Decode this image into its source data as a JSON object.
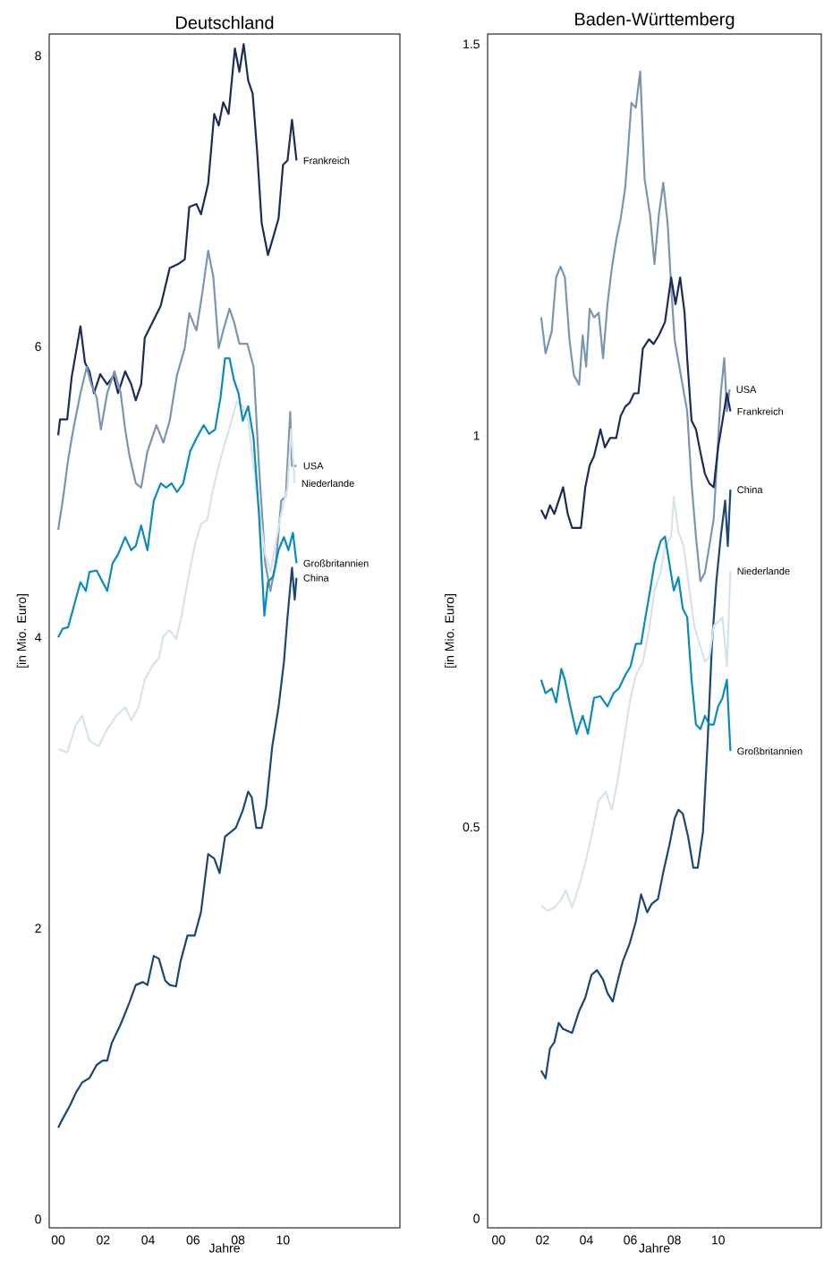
{
  "chart_data": [
    {
      "type": "line",
      "title": "Deutschland",
      "xlabel": "Jahre",
      "ylabel": "[in Mio. Euro]",
      "xlim": [
        -0.4,
        15.2
      ],
      "ylim": [
        -0.06,
        8.15
      ],
      "xticks": [
        {
          "value": 0,
          "label": "00"
        },
        {
          "value": 2,
          "label": "02"
        },
        {
          "value": 4,
          "label": "04"
        },
        {
          "value": 6,
          "label": "06"
        },
        {
          "value": 8,
          "label": "08"
        },
        {
          "value": 10,
          "label": "10"
        }
      ],
      "yticks": [
        0,
        2,
        4,
        6,
        8
      ],
      "grid": false,
      "legend": false,
      "line_style": "solid",
      "series": [
        {
          "name": "Frankreich",
          "color": "#1c2b57",
          "x": [
            0,
            0.08,
            0.4,
            0.6,
            0.99,
            1.19,
            1.39,
            1.59,
            1.87,
            2.18,
            2.46,
            2.66,
            2.98,
            3.25,
            3.45,
            3.69,
            3.85,
            4.56,
            4.96,
            5.36,
            5.63,
            5.83,
            6.15,
            6.35,
            6.67,
            6.94,
            7.14,
            7.34,
            7.58,
            7.86,
            8.06,
            8.25,
            8.45,
            8.65,
            8.85,
            9.05,
            9.33,
            9.56,
            9.8,
            10.0,
            10.2,
            10.4,
            10.6
          ],
          "values": [
            5.39,
            5.5,
            5.5,
            5.79,
            6.14,
            5.89,
            5.83,
            5.68,
            5.81,
            5.74,
            5.8,
            5.68,
            5.83,
            5.74,
            5.63,
            5.74,
            6.06,
            6.28,
            6.54,
            6.57,
            6.6,
            6.96,
            6.98,
            6.91,
            7.12,
            7.6,
            7.52,
            7.68,
            7.6,
            8.05,
            7.89,
            8.08,
            7.83,
            7.74,
            7.34,
            6.85,
            6.63,
            6.75,
            6.88,
            7.25,
            7.28,
            7.56,
            7.28
          ]
        },
        {
          "name": "USA",
          "color": "#7b95ae",
          "x": [
            0,
            0.2,
            0.44,
            0.67,
            0.99,
            1.27,
            1.47,
            1.71,
            1.9,
            2.18,
            2.5,
            2.78,
            2.98,
            3.17,
            3.45,
            3.69,
            3.97,
            4.37,
            4.68,
            4.96,
            5.28,
            5.63,
            5.83,
            6.15,
            6.43,
            6.67,
            6.9,
            7.14,
            7.34,
            7.62,
            7.82,
            8.06,
            8.41,
            8.69,
            8.93,
            9.21,
            9.44,
            9.68,
            9.92,
            10.12,
            10.32,
            10.4,
            10.6
          ],
          "values": [
            4.74,
            4.94,
            5.22,
            5.43,
            5.68,
            5.86,
            5.74,
            5.65,
            5.43,
            5.68,
            5.83,
            5.68,
            5.43,
            5.25,
            5.06,
            5.03,
            5.28,
            5.46,
            5.34,
            5.49,
            5.8,
            5.99,
            6.23,
            6.11,
            6.39,
            6.66,
            6.48,
            5.99,
            6.11,
            6.26,
            6.17,
            6.02,
            6.02,
            5.86,
            5.18,
            4.51,
            4.32,
            4.51,
            4.94,
            4.97,
            5.55,
            5.18,
            5.18
          ]
        },
        {
          "name": "Niederlande",
          "color": "#d6e4ea",
          "x": [
            0,
            0.4,
            0.79,
            1.07,
            1.39,
            1.79,
            2.18,
            2.58,
            2.98,
            3.25,
            3.57,
            3.85,
            4.17,
            4.48,
            4.68,
            4.96,
            5.24,
            5.48,
            5.75,
            6.07,
            6.35,
            6.63,
            6.86,
            7.14,
            7.42,
            7.66,
            7.94,
            8.21,
            8.45,
            8.69,
            8.93,
            9.21,
            9.44,
            9.72,
            9.96,
            10.2,
            10.36,
            10.52
          ],
          "values": [
            3.23,
            3.21,
            3.4,
            3.46,
            3.29,
            3.25,
            3.37,
            3.46,
            3.52,
            3.43,
            3.52,
            3.71,
            3.8,
            3.86,
            4.01,
            4.05,
            3.99,
            4.14,
            4.38,
            4.63,
            4.78,
            4.81,
            5.0,
            5.18,
            5.34,
            5.46,
            5.62,
            5.59,
            5.49,
            5.18,
            4.88,
            4.57,
            4.45,
            4.69,
            4.88,
            5.03,
            5.43,
            5.06
          ]
        },
        {
          "name": "Großbritannien",
          "color": "#0a8abf",
          "x": [
            0,
            0.2,
            0.44,
            0.67,
            0.99,
            1.23,
            1.39,
            1.71,
            1.98,
            2.18,
            2.42,
            2.66,
            2.98,
            3.25,
            3.45,
            3.69,
            3.97,
            4.25,
            4.56,
            4.8,
            5.04,
            5.28,
            5.56,
            5.87,
            6.15,
            6.47,
            6.71,
            6.98,
            7.22,
            7.42,
            7.62,
            7.82,
            8.02,
            8.21,
            8.45,
            8.69,
            8.93,
            9.17,
            9.33,
            9.56,
            9.8,
            10.04,
            10.24,
            10.44,
            10.6
          ],
          "values": [
            4.0,
            4.06,
            4.07,
            4.2,
            4.38,
            4.32,
            4.45,
            4.46,
            4.38,
            4.32,
            4.51,
            4.57,
            4.69,
            4.6,
            4.63,
            4.77,
            4.6,
            4.94,
            5.06,
            5.03,
            5.06,
            5.0,
            5.06,
            5.28,
            5.37,
            5.46,
            5.4,
            5.43,
            5.65,
            5.92,
            5.92,
            5.77,
            5.68,
            5.49,
            5.59,
            5.37,
            4.85,
            4.15,
            4.38,
            4.42,
            4.6,
            4.69,
            4.6,
            4.72,
            4.51
          ]
        },
        {
          "name": "China",
          "color": "#1b4872",
          "x": [
            0,
            0.2,
            0.52,
            0.79,
            1.07,
            1.39,
            1.71,
            1.98,
            2.18,
            2.38,
            2.78,
            3.17,
            3.45,
            3.77,
            3.97,
            4.25,
            4.48,
            4.76,
            4.96,
            5.24,
            5.44,
            5.75,
            6.07,
            6.35,
            6.67,
            6.94,
            7.18,
            7.42,
            7.66,
            7.9,
            8.21,
            8.45,
            8.61,
            8.81,
            9.05,
            9.25,
            9.52,
            9.8,
            10.04,
            10.2,
            10.4,
            10.52,
            10.6
          ],
          "values": [
            0.63,
            0.69,
            0.78,
            0.87,
            0.94,
            0.97,
            1.06,
            1.09,
            1.09,
            1.21,
            1.34,
            1.49,
            1.61,
            1.63,
            1.61,
            1.81,
            1.79,
            1.64,
            1.61,
            1.6,
            1.77,
            1.95,
            1.95,
            2.11,
            2.51,
            2.48,
            2.38,
            2.63,
            2.66,
            2.69,
            2.81,
            2.94,
            2.9,
            2.69,
            2.69,
            2.84,
            3.25,
            3.52,
            3.83,
            4.14,
            4.48,
            4.26,
            4.41
          ]
        }
      ]
    },
    {
      "type": "line",
      "title": "Baden-Württemberg",
      "xlabel": "Jahre",
      "ylabel": "[in Mio. Euro]",
      "xlim": [
        -0.5,
        14.7
      ],
      "ylim": [
        -0.012,
        1.513
      ],
      "xticks": [
        {
          "value": 0,
          "label": "00"
        },
        {
          "value": 2,
          "label": "02"
        },
        {
          "value": 4,
          "label": "04"
        },
        {
          "value": 6,
          "label": "06"
        },
        {
          "value": 8,
          "label": "08"
        },
        {
          "value": 10,
          "label": "10"
        }
      ],
      "yticks": [
        0,
        0.5,
        1,
        1.5
      ],
      "grid": false,
      "legend": false,
      "line_style": "solid",
      "series": [
        {
          "name": "USA",
          "color": "#7b95ae",
          "x": [
            1.94,
            2.14,
            2.42,
            2.62,
            2.82,
            3.02,
            3.23,
            3.43,
            3.67,
            3.83,
            3.99,
            4.15,
            4.35,
            4.56,
            4.76,
            4.96,
            5.16,
            5.36,
            5.56,
            5.77,
            5.89,
            6.05,
            6.25,
            6.45,
            6.65,
            6.9,
            7.1,
            7.3,
            7.5,
            7.7,
            7.86,
            8.02,
            8.59,
            8.79,
            8.99,
            9.19,
            9.4,
            9.6,
            9.8,
            9.96,
            10.12,
            10.28,
            10.4,
            10.52
          ],
          "values": [
            1.151,
            1.105,
            1.133,
            1.202,
            1.216,
            1.202,
            1.122,
            1.077,
            1.065,
            1.128,
            1.088,
            1.162,
            1.151,
            1.157,
            1.099,
            1.168,
            1.214,
            1.25,
            1.277,
            1.317,
            1.362,
            1.425,
            1.419,
            1.465,
            1.328,
            1.282,
            1.219,
            1.282,
            1.323,
            1.271,
            1.191,
            1.122,
            1.031,
            0.939,
            0.871,
            0.814,
            0.825,
            0.859,
            0.894,
            0.974,
            1.054,
            1.099,
            1.031,
            1.059
          ]
        },
        {
          "name": "Frankreich",
          "color": "#1c2b57",
          "x": [
            1.94,
            2.14,
            2.34,
            2.54,
            2.74,
            2.94,
            3.15,
            3.35,
            3.75,
            3.95,
            4.15,
            4.35,
            4.64,
            4.84,
            5.08,
            5.36,
            5.56,
            5.77,
            5.97,
            6.17,
            6.37,
            6.57,
            6.85,
            7.06,
            7.3,
            7.58,
            7.86,
            8.06,
            8.27,
            8.47,
            8.59,
            8.79,
            8.99,
            9.19,
            9.4,
            9.6,
            9.8,
            10.0,
            10.2,
            10.4,
            10.56
          ],
          "values": [
            0.905,
            0.894,
            0.911,
            0.9,
            0.917,
            0.934,
            0.9,
            0.882,
            0.882,
            0.934,
            0.962,
            0.974,
            1.008,
            0.985,
            0.997,
            0.997,
            1.025,
            1.037,
            1.042,
            1.054,
            1.054,
            1.111,
            1.123,
            1.117,
            1.128,
            1.145,
            1.202,
            1.168,
            1.202,
            1.157,
            1.099,
            1.019,
            1.008,
            0.979,
            0.951,
            0.939,
            0.934,
            0.985,
            1.019,
            1.054,
            1.031
          ]
        },
        {
          "name": "China",
          "color": "#1b4872",
          "x": [
            1.94,
            2.14,
            2.34,
            2.54,
            2.74,
            2.94,
            3.35,
            3.67,
            3.95,
            4.23,
            4.48,
            4.76,
            4.96,
            5.2,
            5.36,
            5.65,
            5.97,
            6.25,
            6.49,
            6.77,
            6.98,
            7.26,
            7.5,
            7.78,
            8.02,
            8.19,
            8.39,
            8.63,
            8.87,
            9.07,
            9.31,
            9.52,
            9.72,
            9.92,
            10.12,
            10.32,
            10.44,
            10.56
          ],
          "values": [
            0.189,
            0.179,
            0.217,
            0.225,
            0.25,
            0.242,
            0.237,
            0.265,
            0.282,
            0.311,
            0.317,
            0.305,
            0.288,
            0.277,
            0.296,
            0.328,
            0.351,
            0.379,
            0.414,
            0.391,
            0.402,
            0.408,
            0.442,
            0.477,
            0.511,
            0.522,
            0.517,
            0.488,
            0.448,
            0.448,
            0.494,
            0.608,
            0.734,
            0.814,
            0.871,
            0.917,
            0.859,
            0.931
          ]
        },
        {
          "name": "Niederlande",
          "color": "#d6e4ea",
          "x": [
            1.94,
            2.22,
            2.54,
            2.86,
            3.06,
            3.35,
            3.67,
            3.95,
            4.23,
            4.56,
            4.88,
            5.16,
            5.44,
            5.69,
            5.97,
            6.25,
            6.57,
            6.85,
            7.1,
            7.38,
            7.58,
            7.86,
            7.98,
            8.19,
            8.43,
            8.67,
            8.91,
            9.15,
            9.4,
            9.6,
            9.8,
            10.0,
            10.2,
            10.4,
            10.56
          ],
          "values": [
            0.4,
            0.393,
            0.397,
            0.408,
            0.419,
            0.397,
            0.425,
            0.454,
            0.488,
            0.534,
            0.545,
            0.522,
            0.562,
            0.608,
            0.659,
            0.694,
            0.711,
            0.751,
            0.802,
            0.825,
            0.859,
            0.871,
            0.922,
            0.877,
            0.859,
            0.808,
            0.757,
            0.734,
            0.711,
            0.717,
            0.757,
            0.762,
            0.768,
            0.705,
            0.827
          ]
        },
        {
          "name": "Großbritannien",
          "color": "#0a8abf",
          "x": [
            1.94,
            2.14,
            2.42,
            2.62,
            2.86,
            3.02,
            3.27,
            3.55,
            3.83,
            4.07,
            4.35,
            4.64,
            4.96,
            5.24,
            5.48,
            5.77,
            6.01,
            6.25,
            6.49,
            6.69,
            6.9,
            7.1,
            7.38,
            7.58,
            7.78,
            7.98,
            8.19,
            8.39,
            8.59,
            8.79,
            8.99,
            9.19,
            9.4,
            9.6,
            9.8,
            10.0,
            10.2,
            10.4,
            10.56
          ],
          "values": [
            0.688,
            0.671,
            0.677,
            0.659,
            0.702,
            0.688,
            0.654,
            0.619,
            0.642,
            0.619,
            0.665,
            0.667,
            0.654,
            0.671,
            0.677,
            0.694,
            0.705,
            0.734,
            0.734,
            0.768,
            0.802,
            0.837,
            0.865,
            0.871,
            0.837,
            0.802,
            0.819,
            0.779,
            0.768,
            0.688,
            0.631,
            0.625,
            0.642,
            0.631,
            0.631,
            0.654,
            0.665,
            0.688,
            0.597
          ]
        }
      ]
    }
  ]
}
